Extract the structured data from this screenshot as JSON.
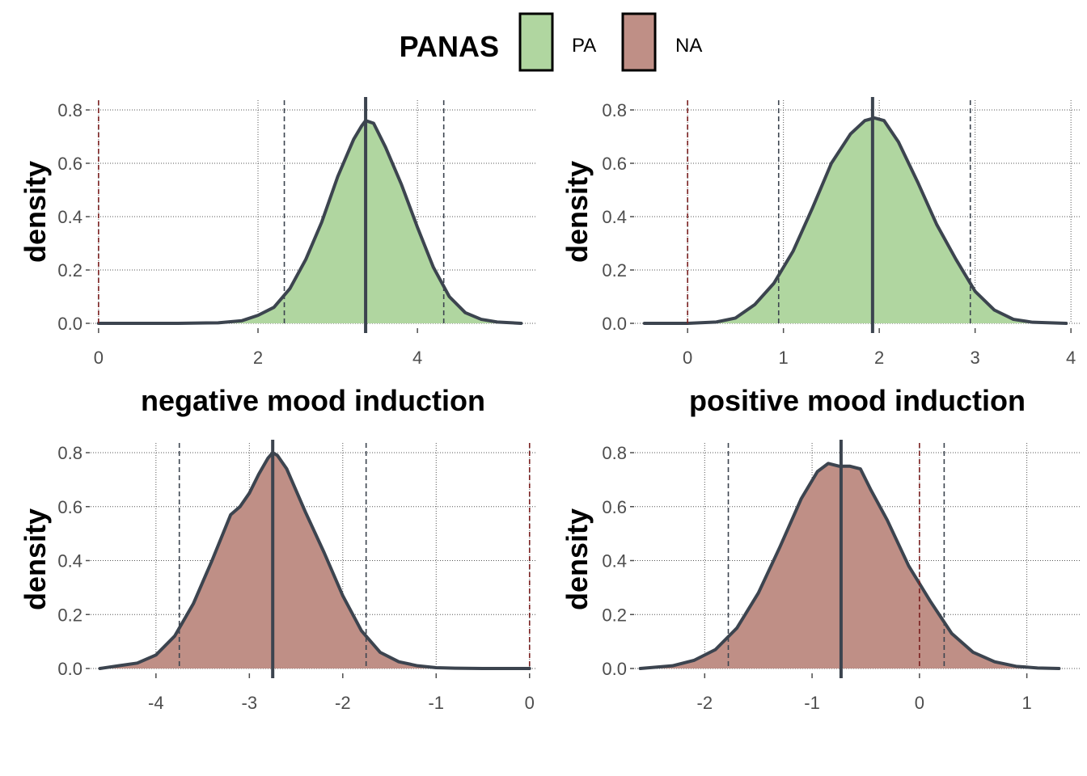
{
  "legend": {
    "title": "PANAS",
    "position": "top",
    "entries": [
      {
        "label": "PA",
        "color": "#b0d6a0"
      },
      {
        "label": "NA",
        "color": "#bf8f86"
      }
    ]
  },
  "chart_data": [
    {
      "type": "area",
      "panel": "top-left",
      "fill_color": "#b0d6a0",
      "outline_color": "#3c444f",
      "xlabel": "negative mood induction",
      "ylabel": "density",
      "xlim": [
        -0.1,
        5.5
      ],
      "ylim": [
        0,
        0.8
      ],
      "x_ticks": [
        0,
        2,
        4
      ],
      "y_ticks": [
        0.0,
        0.2,
        0.4,
        0.6,
        0.8
      ],
      "y_tick_labels": [
        "0.0",
        "0.2",
        "0.4",
        "0.6",
        "0.8"
      ],
      "grid": true,
      "center_line": 3.35,
      "interval_lines": [
        2.33,
        4.33
      ],
      "zero_line": 0,
      "density": {
        "x": [
          0,
          1.0,
          1.5,
          1.8,
          2.0,
          2.2,
          2.4,
          2.6,
          2.8,
          3.0,
          3.1,
          3.2,
          3.3,
          3.35,
          3.45,
          3.6,
          3.8,
          4.0,
          4.2,
          4.4,
          4.6,
          4.8,
          5.0,
          5.3
        ],
        "y": [
          0,
          0,
          0.002,
          0.01,
          0.03,
          0.06,
          0.13,
          0.24,
          0.38,
          0.55,
          0.62,
          0.69,
          0.74,
          0.76,
          0.75,
          0.66,
          0.52,
          0.36,
          0.21,
          0.1,
          0.04,
          0.015,
          0.005,
          0
        ]
      }
    },
    {
      "type": "area",
      "panel": "top-right",
      "fill_color": "#b0d6a0",
      "outline_color": "#3c444f",
      "xlabel": "positive mood induction",
      "ylabel": "density",
      "xlim": [
        -0.55,
        4.1
      ],
      "ylim": [
        0,
        0.8
      ],
      "x_ticks": [
        0,
        1,
        2,
        3,
        4
      ],
      "y_ticks": [
        0.0,
        0.2,
        0.4,
        0.6,
        0.8
      ],
      "y_tick_labels": [
        "0.0",
        "0.2",
        "0.4",
        "0.6",
        "0.8"
      ],
      "grid": true,
      "center_line": 1.93,
      "interval_lines": [
        0.95,
        2.95
      ],
      "zero_line": 0,
      "density": {
        "x": [
          -0.45,
          0,
          0.3,
          0.5,
          0.7,
          0.9,
          1.1,
          1.3,
          1.5,
          1.7,
          1.85,
          1.95,
          2.05,
          2.2,
          2.4,
          2.6,
          2.8,
          3.0,
          3.2,
          3.4,
          3.6,
          3.95
        ],
        "y": [
          0,
          0,
          0.005,
          0.02,
          0.07,
          0.15,
          0.27,
          0.43,
          0.6,
          0.71,
          0.76,
          0.77,
          0.76,
          0.68,
          0.53,
          0.37,
          0.24,
          0.12,
          0.05,
          0.015,
          0.004,
          0
        ]
      }
    },
    {
      "type": "area",
      "panel": "bottom-left",
      "fill_color": "#bf8f86",
      "outline_color": "#3c444f",
      "xlabel": "",
      "ylabel": "density",
      "xlim": [
        -4.7,
        0.08
      ],
      "ylim": [
        0,
        0.8
      ],
      "x_ticks": [
        -4,
        -3,
        -2,
        -1,
        0
      ],
      "y_ticks": [
        0.0,
        0.2,
        0.4,
        0.6,
        0.8
      ],
      "y_tick_labels": [
        "0.0",
        "0.2",
        "0.4",
        "0.6",
        "0.8"
      ],
      "grid": true,
      "center_line": -2.75,
      "interval_lines": [
        -3.75,
        -1.75
      ],
      "zero_line": 0,
      "density": {
        "x": [
          -4.6,
          -4.4,
          -4.2,
          -4.0,
          -3.8,
          -3.6,
          -3.4,
          -3.2,
          -3.1,
          -3.0,
          -2.9,
          -2.8,
          -2.75,
          -2.7,
          -2.6,
          -2.4,
          -2.2,
          -2.0,
          -1.8,
          -1.6,
          -1.4,
          -1.2,
          -1.0,
          -0.8,
          -0.5,
          0
        ],
        "y": [
          0,
          0.01,
          0.02,
          0.05,
          0.12,
          0.24,
          0.4,
          0.57,
          0.6,
          0.65,
          0.72,
          0.78,
          0.8,
          0.79,
          0.74,
          0.58,
          0.43,
          0.27,
          0.14,
          0.06,
          0.025,
          0.01,
          0.003,
          0.001,
          0,
          0
        ]
      }
    },
    {
      "type": "area",
      "panel": "bottom-right",
      "fill_color": "#bf8f86",
      "outline_color": "#3c444f",
      "xlabel": "",
      "ylabel": "density",
      "xlim": [
        -2.65,
        1.5
      ],
      "ylim": [
        0,
        0.8
      ],
      "x_ticks": [
        -2,
        -1,
        0,
        1
      ],
      "y_ticks": [
        0.0,
        0.2,
        0.4,
        0.6,
        0.8
      ],
      "y_tick_labels": [
        "0.0",
        "0.2",
        "0.4",
        "0.6",
        "0.8"
      ],
      "grid": true,
      "center_line": -0.73,
      "interval_lines": [
        -1.78,
        0.23
      ],
      "zero_line": 0,
      "density": {
        "x": [
          -2.6,
          -2.3,
          -2.1,
          -1.9,
          -1.7,
          -1.5,
          -1.3,
          -1.1,
          -0.95,
          -0.85,
          -0.75,
          -0.65,
          -0.55,
          -0.45,
          -0.3,
          -0.1,
          0.1,
          0.3,
          0.5,
          0.7,
          0.9,
          1.1,
          1.3
        ],
        "y": [
          0,
          0.01,
          0.03,
          0.07,
          0.15,
          0.28,
          0.45,
          0.63,
          0.73,
          0.76,
          0.75,
          0.75,
          0.74,
          0.66,
          0.55,
          0.38,
          0.25,
          0.13,
          0.06,
          0.025,
          0.008,
          0.002,
          0
        ]
      }
    }
  ]
}
